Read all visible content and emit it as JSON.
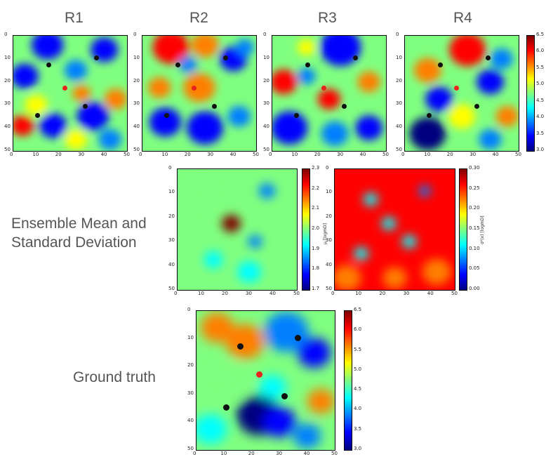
{
  "labels": {
    "r1": "R1",
    "r2": "R2",
    "r3": "R3",
    "r4": "R4",
    "ensemble_line1": "Ensemble Mean and",
    "ensemble_line2": "Standard Deviation",
    "ground_truth": "Ground truth"
  },
  "axis_ticks": [
    "0",
    "10",
    "20",
    "30",
    "40",
    "50"
  ],
  "colorbars": {
    "realizations": {
      "ticks": [
        "6.5",
        "6.0",
        "5.5",
        "5.0",
        "4.5",
        "4.0",
        "3.5",
        "3.0"
      ],
      "label": ""
    },
    "mean": {
      "ticks": [
        "2.3",
        "2.2",
        "2.1",
        "2.0",
        "1.9",
        "1.8",
        "1.7"
      ],
      "label": "μ [logmD]"
    },
    "std": {
      "ticks": [
        "0.30",
        "0.25",
        "0.20",
        "0.15",
        "0.10",
        "0.05",
        "0.00"
      ],
      "label": "σ²(x) [logmD]"
    },
    "truth": {
      "ticks": [
        "6.5",
        "6.0",
        "5.5",
        "5.0",
        "4.5",
        "4.0",
        "3.5",
        "3.0"
      ],
      "label": ""
    }
  },
  "colormap": "jet",
  "wells": {
    "producers": [
      [
        16,
        13
      ],
      [
        37,
        10
      ],
      [
        11,
        35
      ],
      [
        32,
        31
      ]
    ],
    "injector": [
      23,
      23
    ],
    "producer_color": "#111111",
    "injector_color": "#e8231e"
  }
}
